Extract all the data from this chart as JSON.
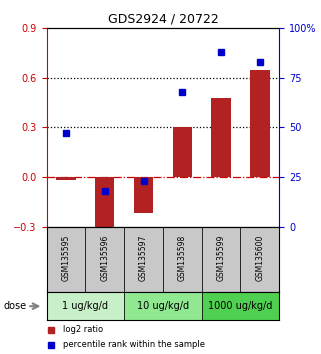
{
  "title": "GDS2924 / 20722",
  "samples": [
    "GSM135595",
    "GSM135596",
    "GSM135597",
    "GSM135598",
    "GSM135599",
    "GSM135600"
  ],
  "log2_ratio": [
    -0.02,
    -0.32,
    -0.22,
    0.3,
    0.48,
    0.65
  ],
  "percentile_rank": [
    47,
    18,
    23,
    68,
    88,
    83
  ],
  "ylim_left": [
    -0.3,
    0.9
  ],
  "ylim_right": [
    0,
    100
  ],
  "yticks_left": [
    -0.3,
    0.0,
    0.3,
    0.6,
    0.9
  ],
  "yticks_right": [
    0,
    25,
    50,
    75,
    100
  ],
  "hline_dotted": [
    0.3,
    0.6
  ],
  "hline_dashed": 0.0,
  "bar_color": "#B22222",
  "square_color": "#0000CC",
  "bar_width": 0.5,
  "dose_groups": [
    {
      "label": "1 ug/kg/d",
      "samples": [
        0,
        1
      ],
      "color": "#c8f0c8"
    },
    {
      "label": "10 ug/kg/d",
      "samples": [
        2,
        3
      ],
      "color": "#90e890"
    },
    {
      "label": "1000 ug/kg/d",
      "samples": [
        4,
        5
      ],
      "color": "#50d050"
    }
  ],
  "dose_label": "dose",
  "legend_red": "log2 ratio",
  "legend_blue": "percentile rank within the sample",
  "left_axis_color": "#CC0000",
  "right_axis_color": "#0000CC",
  "sample_box_color": "#C8C8C8",
  "title_fontsize": 9,
  "tick_fontsize": 7,
  "sample_fontsize": 5.5,
  "dose_fontsize": 7,
  "legend_fontsize": 6
}
